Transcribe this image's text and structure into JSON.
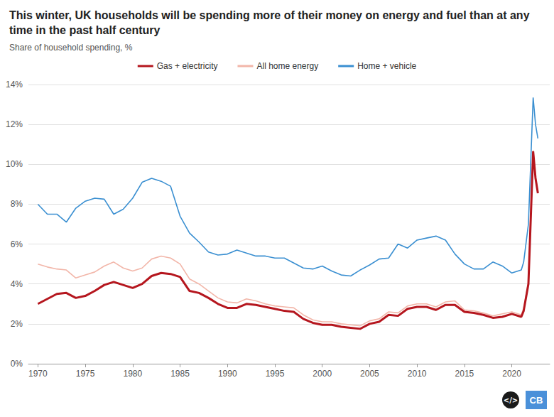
{
  "chart_data": {
    "type": "line",
    "title": "This winter, UK households will be spending more of their money on energy and fuel than at any time in the past half century",
    "subtitle": "Share of household spending, %",
    "annotations": [
      "</>",
      "CB"
    ],
    "x": [
      1970,
      1971,
      1972,
      1973,
      1974,
      1975,
      1976,
      1977,
      1978,
      1979,
      1980,
      1981,
      1982,
      1983,
      1984,
      1985,
      1986,
      1987,
      1988,
      1989,
      1990,
      1991,
      1992,
      1993,
      1994,
      1995,
      1996,
      1997,
      1998,
      1999,
      2000,
      2001,
      2002,
      2003,
      2004,
      2005,
      2006,
      2007,
      2008,
      2009,
      2010,
      2011,
      2012,
      2013,
      2014,
      2015,
      2016,
      2017,
      2018,
      2019,
      2020,
      2021,
      2021.25,
      2021.75,
      2022.25,
      2022.5,
      2022.75
    ],
    "series": [
      {
        "name": "Gas + electricity",
        "color": "#b5161e",
        "values": [
          3.0,
          3.25,
          3.5,
          3.55,
          3.3,
          3.4,
          3.65,
          3.95,
          4.1,
          3.95,
          3.8,
          4.0,
          4.4,
          4.55,
          4.5,
          4.35,
          3.65,
          3.55,
          3.3,
          3.0,
          2.8,
          2.8,
          3.0,
          2.95,
          2.85,
          2.75,
          2.65,
          2.6,
          2.25,
          2.05,
          1.95,
          1.95,
          1.85,
          1.8,
          1.75,
          2.0,
          2.1,
          2.45,
          2.4,
          2.75,
          2.85,
          2.85,
          2.7,
          2.95,
          2.95,
          2.6,
          2.55,
          2.45,
          2.3,
          2.35,
          2.5,
          2.35,
          2.65,
          4.0,
          10.65,
          9.3,
          8.55
        ]
      },
      {
        "name": "All home energy",
        "color": "#f2b6a9",
        "values": [
          5.0,
          4.85,
          4.75,
          4.7,
          4.3,
          4.45,
          4.6,
          4.9,
          5.1,
          4.8,
          4.65,
          4.8,
          5.25,
          5.4,
          5.3,
          5.0,
          4.25,
          4.0,
          3.65,
          3.3,
          3.1,
          3.05,
          3.25,
          3.15,
          3.0,
          2.9,
          2.85,
          2.8,
          2.45,
          2.2,
          2.1,
          2.1,
          2.0,
          1.95,
          1.9,
          2.15,
          2.25,
          2.6,
          2.55,
          2.9,
          3.0,
          3.0,
          2.85,
          3.1,
          3.15,
          2.7,
          2.65,
          2.55,
          2.4,
          2.5,
          2.6,
          2.45,
          2.8,
          4.1,
          10.7,
          9.4,
          8.6
        ]
      },
      {
        "name": "Home + vehicle",
        "color": "#3a8fd1",
        "values": [
          8.0,
          7.5,
          7.5,
          7.1,
          7.8,
          8.15,
          8.3,
          8.25,
          7.5,
          7.75,
          8.3,
          9.1,
          9.3,
          9.15,
          8.9,
          7.4,
          6.55,
          6.1,
          5.6,
          5.45,
          5.5,
          5.7,
          5.55,
          5.4,
          5.4,
          5.3,
          5.3,
          5.05,
          4.8,
          4.75,
          4.9,
          4.65,
          4.45,
          4.4,
          4.7,
          4.95,
          5.25,
          5.3,
          6.0,
          5.8,
          6.2,
          6.3,
          6.4,
          6.2,
          5.5,
          5.0,
          4.75,
          4.75,
          5.1,
          4.9,
          4.55,
          4.7,
          5.1,
          7.0,
          13.35,
          12.0,
          11.3
        ]
      }
    ],
    "xlim": [
      1969,
      2024
    ],
    "xticks": [
      1970,
      1975,
      1980,
      1985,
      1990,
      1995,
      2000,
      2005,
      2010,
      2015,
      2020
    ],
    "ylim": [
      0,
      14
    ],
    "yticks": [
      {
        "value": 0,
        "label": "0%"
      },
      {
        "value": 2,
        "label": "2%"
      },
      {
        "value": 4,
        "label": "4%"
      },
      {
        "value": 6,
        "label": "6%"
      },
      {
        "value": 8,
        "label": "8%"
      },
      {
        "value": 10,
        "label": "10%"
      },
      {
        "value": 12,
        "label": "12%"
      },
      {
        "value": 14,
        "label": "14%"
      }
    ],
    "grid": true,
    "legend": "top"
  }
}
